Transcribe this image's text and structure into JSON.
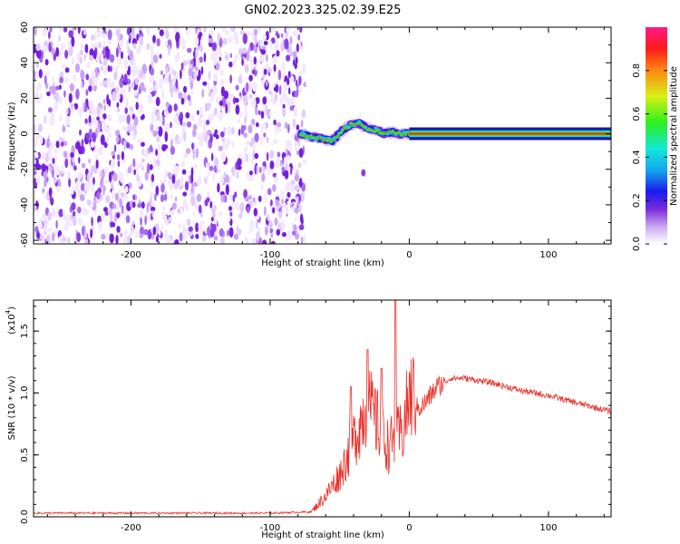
{
  "title": "GN02.2023.325.02.39.E25",
  "chart_data": [
    {
      "type": "heatmap",
      "xlabel": "Height of straight line (km)",
      "ylabel": "Frequency (Hz)",
      "xlim": [
        -270,
        145
      ],
      "ylim": [
        -62,
        60
      ],
      "xticks": [
        -200,
        -100,
        0,
        100
      ],
      "yticks": [
        60,
        40,
        20,
        0,
        -20,
        -40,
        -60
      ],
      "colorbar": {
        "label": "Normalized spectral amplitude",
        "range": [
          0.0,
          1.0
        ],
        "ticks": [
          0.0,
          0.2,
          0.4,
          0.6,
          0.8
        ]
      },
      "noise_region_x": [
        -270,
        -75
      ],
      "ridge": {
        "x": [
          -78,
          -70,
          -62,
          -55,
          -48,
          -42,
          -36,
          -30,
          -24,
          -18,
          -12,
          -6,
          0,
          145
        ],
        "y": [
          0,
          -2,
          -3,
          -4,
          2,
          5,
          6,
          3,
          2,
          0,
          1,
          0,
          0,
          0
        ]
      },
      "band_x_range": [
        0,
        145
      ]
    },
    {
      "type": "line",
      "xlabel": "Height of straight line (km)",
      "ylabel": "SNR (10 * v/v)",
      "yscale_label": "(x10",
      "yscale_exp": "4",
      "xlim": [
        -270,
        145
      ],
      "ylim": [
        0,
        1.75
      ],
      "xticks": [
        -200,
        -100,
        0,
        100
      ],
      "yticks": [
        0.0,
        0.5,
        1.0,
        1.5
      ],
      "color": "#e8302a",
      "x": [
        -270,
        -200,
        -100,
        -70,
        -60,
        -50,
        -40,
        -30,
        -20,
        -15,
        -10,
        -5,
        0,
        10,
        20,
        30,
        40,
        60,
        80,
        100,
        120,
        145
      ],
      "y": [
        0.03,
        0.03,
        0.03,
        0.04,
        0.15,
        0.3,
        0.55,
        0.8,
        0.6,
        0.5,
        0.55,
        0.6,
        0.85,
        0.9,
        1.05,
        1.12,
        1.12,
        1.08,
        1.02,
        0.98,
        0.92,
        0.85
      ],
      "spikes": [
        {
          "x": -42,
          "y": 1.05
        },
        {
          "x": -30,
          "y": 1.35
        },
        {
          "x": -20,
          "y": 1.2
        },
        {
          "x": -10,
          "y": 1.75
        }
      ]
    }
  ]
}
